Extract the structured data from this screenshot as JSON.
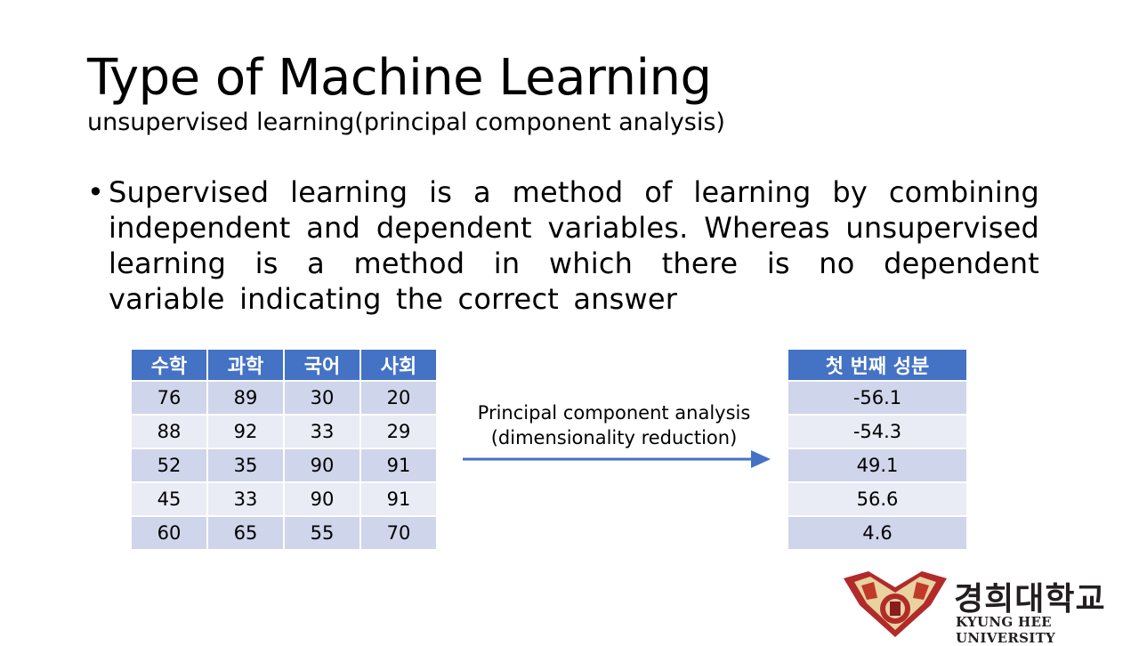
{
  "slide": {
    "title": "Type of Machine Learning",
    "subtitle": "unsupervised learning(principal component analysis)",
    "bullet_symbol": "•",
    "bullet": "Supervised learning is a method of learning by combining independent and dependent variables. Whereas unsupervised learning is a method in which there is no dependent variable indicating the correct answer"
  },
  "scores_table": {
    "headers": [
      "수학",
      "과학",
      "국어",
      "사회"
    ],
    "rows": [
      [
        "76",
        "89",
        "30",
        "20"
      ],
      [
        "88",
        "92",
        "33",
        "29"
      ],
      [
        "52",
        "35",
        "90",
        "91"
      ],
      [
        "45",
        "33",
        "90",
        "91"
      ],
      [
        "60",
        "65",
        "55",
        "70"
      ]
    ]
  },
  "arrow": {
    "line1": "Principal component analysis",
    "line2": "(dimensionality reduction)",
    "color": "#4472c4"
  },
  "component_table": {
    "header": "첫 번째 성분",
    "values": [
      "-56.1",
      "-54.3",
      "49.1",
      "56.6",
      "4.6"
    ]
  },
  "logo": {
    "korean": "경희대학교",
    "english": "KYUNG HEE UNIVERSITY"
  },
  "colors": {
    "header": "#4472c4",
    "row_dark": "#cfd5ea",
    "row_light": "#e9ebf5",
    "emblem_red": "#b22a2a"
  }
}
